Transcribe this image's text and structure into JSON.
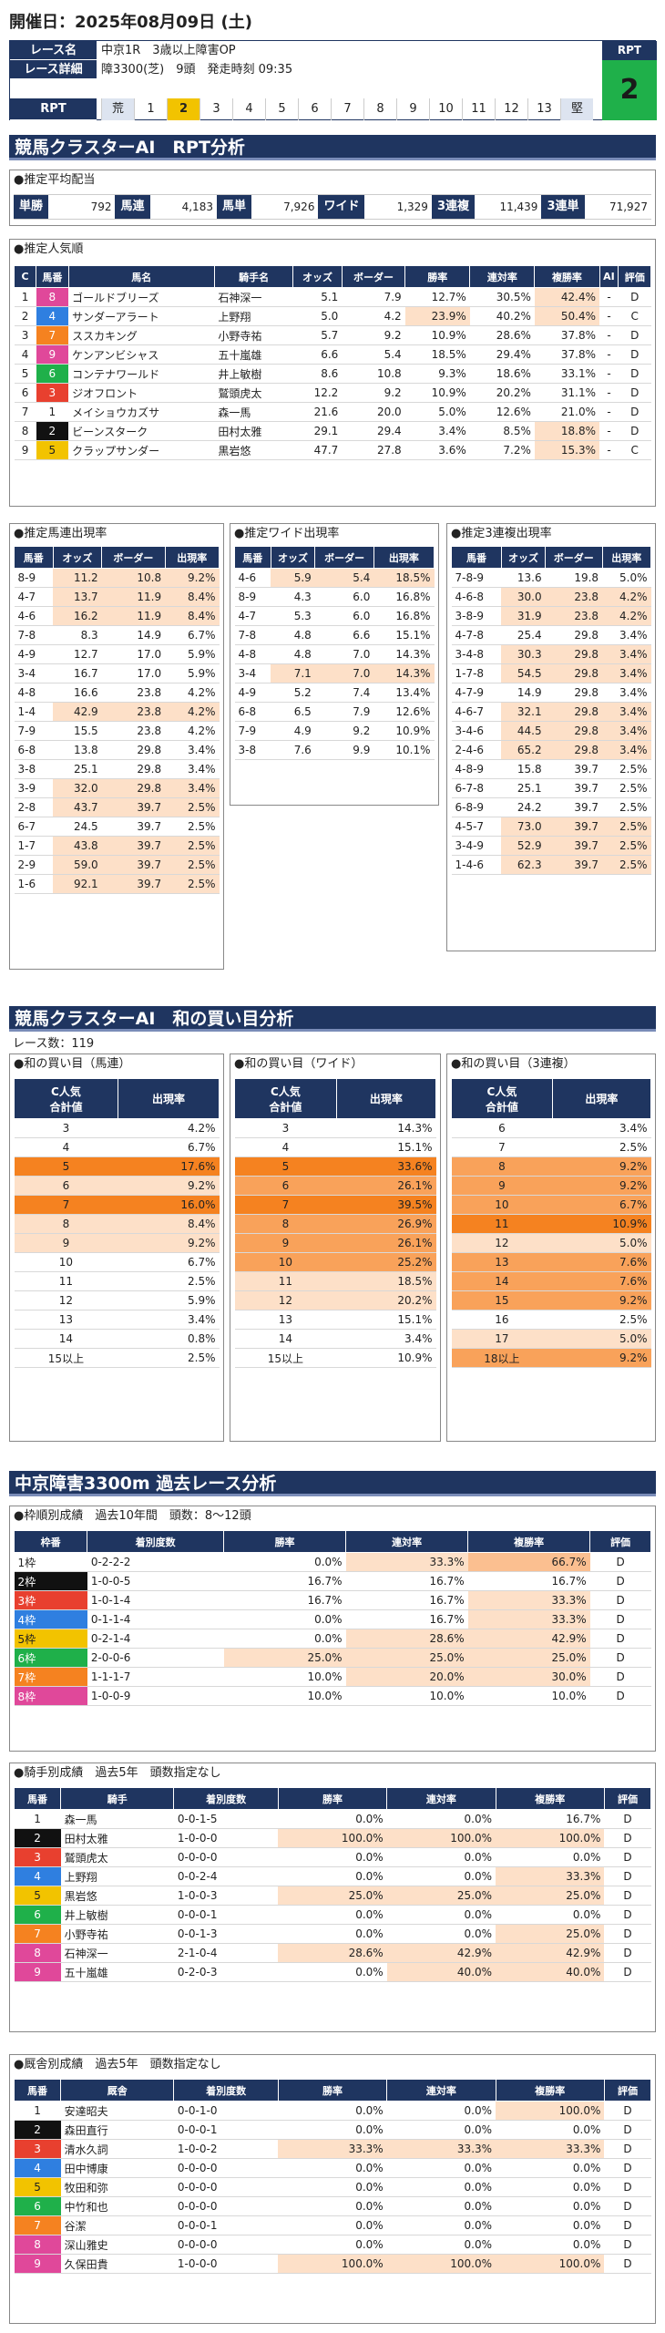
{
  "header": {
    "title": "開催日：2025年08月09日 (土)"
  },
  "race": {
    "name_label": "レース名",
    "name": "中京1R　3歳以上障害OP",
    "detail_label": "レース詳細",
    "detail": "障3300(芝)　9頭　発走時刻 09:35",
    "rpt_label": "RPT",
    "rpt_value": "2",
    "scale_label": "RPT",
    "scale_left": "荒",
    "scale_right": "堅",
    "scale": [
      "1",
      "2",
      "3",
      "4",
      "5",
      "6",
      "7",
      "8",
      "9",
      "10",
      "11",
      "12",
      "13"
    ]
  },
  "s1": {
    "title": "競馬クラスターAI　RPT分析"
  },
  "payout": {
    "title": "●推定平均配当",
    "items": [
      [
        "単勝",
        "792"
      ],
      [
        "馬連",
        "4,183"
      ],
      [
        "馬単",
        "7,926"
      ],
      [
        "ワイド",
        "1,329"
      ],
      [
        "3連複",
        "11,439"
      ],
      [
        "3連単",
        "71,927"
      ]
    ]
  },
  "popular": {
    "title": "●推定人気順",
    "headers": [
      "C",
      "馬番",
      "馬名",
      "騎手名",
      "オッズ",
      "ボーダー",
      "勝率",
      "連対率",
      "複勝率",
      "AI",
      "評価"
    ],
    "rows": [
      [
        "1",
        "8",
        "ゴールドブリーズ",
        "石神深一",
        "5.1",
        "7.9",
        "12.7%",
        "30.5%",
        "42.4%",
        "-",
        "D"
      ],
      [
        "2",
        "4",
        "サンダーアラート",
        "上野翔",
        "5.0",
        "4.2",
        "23.9%",
        "40.2%",
        "50.4%",
        "-",
        "C"
      ],
      [
        "3",
        "7",
        "ススカキング",
        "小野寺祐",
        "5.7",
        "9.2",
        "10.9%",
        "28.6%",
        "37.8%",
        "-",
        "D"
      ],
      [
        "4",
        "9",
        "ケンアンビシャス",
        "五十嵐雄",
        "6.6",
        "5.4",
        "18.5%",
        "29.4%",
        "37.8%",
        "-",
        "D"
      ],
      [
        "5",
        "6",
        "コンテナワールド",
        "井上敏樹",
        "8.6",
        "10.8",
        "9.3%",
        "18.6%",
        "33.1%",
        "-",
        "D"
      ],
      [
        "6",
        "3",
        "ジオフロント",
        "鷲頭虎太",
        "12.2",
        "9.2",
        "10.9%",
        "20.2%",
        "31.1%",
        "-",
        "D"
      ],
      [
        "7",
        "1",
        "メイショウカズサ",
        "森一馬",
        "21.6",
        "20.0",
        "5.0%",
        "12.6%",
        "21.0%",
        "-",
        "D"
      ],
      [
        "8",
        "2",
        "ビーンスターク",
        "田村太雅",
        "29.1",
        "29.4",
        "3.4%",
        "8.5%",
        "18.8%",
        "-",
        "D"
      ],
      [
        "9",
        "5",
        "クラップサンダー",
        "黒岩悠",
        "47.7",
        "27.8",
        "3.6%",
        "7.2%",
        "15.3%",
        "-",
        "C"
      ]
    ]
  },
  "umaren": {
    "title": "●推定馬連出現率",
    "headers": [
      "馬番",
      "オッズ",
      "ボーダー",
      "出現率"
    ],
    "rows": [
      [
        "8-9",
        "11.2",
        "10.8",
        "9.2%"
      ],
      [
        "4-7",
        "13.7",
        "11.9",
        "8.4%"
      ],
      [
        "4-6",
        "16.2",
        "11.9",
        "8.4%"
      ],
      [
        "7-8",
        "8.3",
        "14.9",
        "6.7%"
      ],
      [
        "4-9",
        "12.7",
        "17.0",
        "5.9%"
      ],
      [
        "3-4",
        "16.7",
        "17.0",
        "5.9%"
      ],
      [
        "4-8",
        "16.6",
        "23.8",
        "4.2%"
      ],
      [
        "1-4",
        "42.9",
        "23.8",
        "4.2%"
      ],
      [
        "7-9",
        "15.5",
        "23.8",
        "4.2%"
      ],
      [
        "6-8",
        "13.8",
        "29.8",
        "3.4%"
      ],
      [
        "3-8",
        "25.1",
        "29.8",
        "3.4%"
      ],
      [
        "3-9",
        "32.0",
        "29.8",
        "3.4%"
      ],
      [
        "2-8",
        "43.7",
        "39.7",
        "2.5%"
      ],
      [
        "6-7",
        "24.5",
        "39.7",
        "2.5%"
      ],
      [
        "1-7",
        "43.8",
        "39.7",
        "2.5%"
      ],
      [
        "2-9",
        "59.0",
        "39.7",
        "2.5%"
      ],
      [
        "1-6",
        "92.1",
        "39.7",
        "2.5%"
      ]
    ]
  },
  "wide": {
    "title": "●推定ワイド出現率",
    "headers": [
      "馬番",
      "オッズ",
      "ボーダー",
      "出現率"
    ],
    "rows": [
      [
        "4-6",
        "5.9",
        "5.4",
        "18.5%"
      ],
      [
        "8-9",
        "4.3",
        "6.0",
        "16.8%"
      ],
      [
        "4-7",
        "5.3",
        "6.0",
        "16.8%"
      ],
      [
        "7-8",
        "4.8",
        "6.6",
        "15.1%"
      ],
      [
        "4-8",
        "4.8",
        "7.0",
        "14.3%"
      ],
      [
        "3-4",
        "7.1",
        "7.0",
        "14.3%"
      ],
      [
        "4-9",
        "5.2",
        "7.4",
        "13.4%"
      ],
      [
        "6-8",
        "6.5",
        "7.9",
        "12.6%"
      ],
      [
        "7-9",
        "4.9",
        "9.2",
        "10.9%"
      ],
      [
        "3-8",
        "7.6",
        "9.9",
        "10.1%"
      ]
    ]
  },
  "trio": {
    "title": "●推定3連複出現率",
    "headers": [
      "馬番",
      "オッズ",
      "ボーダー",
      "出現率"
    ],
    "rows": [
      [
        "7-8-9",
        "13.6",
        "19.8",
        "5.0%"
      ],
      [
        "4-6-8",
        "30.0",
        "23.8",
        "4.2%"
      ],
      [
        "3-8-9",
        "31.9",
        "23.8",
        "4.2%"
      ],
      [
        "4-7-8",
        "25.4",
        "29.8",
        "3.4%"
      ],
      [
        "3-4-8",
        "30.3",
        "29.8",
        "3.4%"
      ],
      [
        "1-7-8",
        "54.5",
        "29.8",
        "3.4%"
      ],
      [
        "4-7-9",
        "14.9",
        "29.8",
        "3.4%"
      ],
      [
        "4-6-7",
        "32.1",
        "29.8",
        "3.4%"
      ],
      [
        "3-4-6",
        "44.5",
        "29.8",
        "3.4%"
      ],
      [
        "2-4-6",
        "65.2",
        "29.8",
        "3.4%"
      ],
      [
        "4-8-9",
        "15.8",
        "39.7",
        "2.5%"
      ],
      [
        "6-7-8",
        "25.1",
        "39.7",
        "2.5%"
      ],
      [
        "6-8-9",
        "24.2",
        "39.7",
        "2.5%"
      ],
      [
        "4-5-7",
        "73.0",
        "39.7",
        "2.5%"
      ],
      [
        "3-4-9",
        "52.9",
        "39.7",
        "2.5%"
      ],
      [
        "1-4-6",
        "62.3",
        "39.7",
        "2.5%"
      ]
    ]
  },
  "s2": {
    "title": "競馬クラスターAI　和の買い目分析",
    "races": "レース数：119"
  },
  "sum_umaren": {
    "title": "●和の買い目（馬連）",
    "h1": "C人気\n合計値",
    "h2": "出現率",
    "rows": [
      [
        "3",
        "4.2%"
      ],
      [
        "4",
        "6.7%"
      ],
      [
        "5",
        "17.6%"
      ],
      [
        "6",
        "9.2%"
      ],
      [
        "7",
        "16.0%"
      ],
      [
        "8",
        "8.4%"
      ],
      [
        "9",
        "9.2%"
      ],
      [
        "10",
        "6.7%"
      ],
      [
        "11",
        "2.5%"
      ],
      [
        "12",
        "5.9%"
      ],
      [
        "13",
        "3.4%"
      ],
      [
        "14",
        "0.8%"
      ],
      [
        "15以上",
        "2.5%"
      ]
    ]
  },
  "sum_wide": {
    "title": "●和の買い目（ワイド）",
    "h1": "C人気\n合計値",
    "h2": "出現率",
    "rows": [
      [
        "3",
        "14.3%"
      ],
      [
        "4",
        "15.1%"
      ],
      [
        "5",
        "33.6%"
      ],
      [
        "6",
        "26.1%"
      ],
      [
        "7",
        "39.5%"
      ],
      [
        "8",
        "26.9%"
      ],
      [
        "9",
        "26.1%"
      ],
      [
        "10",
        "25.2%"
      ],
      [
        "11",
        "18.5%"
      ],
      [
        "12",
        "20.2%"
      ],
      [
        "13",
        "15.1%"
      ],
      [
        "14",
        "3.4%"
      ],
      [
        "15以上",
        "10.9%"
      ]
    ]
  },
  "sum_trio": {
    "title": "●和の買い目（3連複）",
    "h1": "C人気\n合計値",
    "h2": "出現率",
    "rows": [
      [
        "6",
        "3.4%"
      ],
      [
        "7",
        "2.5%"
      ],
      [
        "8",
        "9.2%"
      ],
      [
        "9",
        "9.2%"
      ],
      [
        "10",
        "6.7%"
      ],
      [
        "11",
        "10.9%"
      ],
      [
        "12",
        "5.0%"
      ],
      [
        "13",
        "7.6%"
      ],
      [
        "14",
        "7.6%"
      ],
      [
        "15",
        "9.2%"
      ],
      [
        "16",
        "2.5%"
      ],
      [
        "17",
        "5.0%"
      ],
      [
        "18以上",
        "9.2%"
      ]
    ]
  },
  "s3": {
    "title": "中京障害3300m 過去レース分析"
  },
  "waku": {
    "title": "●枠順別成績　過去10年間　頭数：8～12頭",
    "headers": [
      "枠番",
      "着別度数",
      "勝率",
      "連対率",
      "複勝率",
      "評価"
    ],
    "rows": [
      [
        "1枠",
        "0-2-2-2",
        "0.0%",
        "33.3%",
        "66.7%",
        "D"
      ],
      [
        "2枠",
        "1-0-0-5",
        "16.7%",
        "16.7%",
        "16.7%",
        "D"
      ],
      [
        "3枠",
        "1-0-1-4",
        "16.7%",
        "16.7%",
        "33.3%",
        "D"
      ],
      [
        "4枠",
        "0-1-1-4",
        "0.0%",
        "16.7%",
        "33.3%",
        "D"
      ],
      [
        "5枠",
        "0-2-1-4",
        "0.0%",
        "28.6%",
        "42.9%",
        "D"
      ],
      [
        "6枠",
        "2-0-0-6",
        "25.0%",
        "25.0%",
        "25.0%",
        "D"
      ],
      [
        "7枠",
        "1-1-1-7",
        "10.0%",
        "20.0%",
        "30.0%",
        "D"
      ],
      [
        "8枠",
        "1-0-0-9",
        "10.0%",
        "10.0%",
        "10.0%",
        "D"
      ]
    ]
  },
  "jockey": {
    "title": "●騎手別成績　過去5年　頭数指定なし",
    "headers": [
      "馬番",
      "騎手",
      "着別度数",
      "勝率",
      "連対率",
      "複勝率",
      "評価"
    ],
    "rows": [
      [
        "1",
        "森一馬",
        "0-0-1-5",
        "0.0%",
        "0.0%",
        "16.7%",
        "D"
      ],
      [
        "2",
        "田村太雅",
        "1-0-0-0",
        "100.0%",
        "100.0%",
        "100.0%",
        "D"
      ],
      [
        "3",
        "鷲頭虎太",
        "0-0-0-0",
        "0.0%",
        "0.0%",
        "0.0%",
        "D"
      ],
      [
        "4",
        "上野翔",
        "0-0-2-4",
        "0.0%",
        "0.0%",
        "33.3%",
        "D"
      ],
      [
        "5",
        "黒岩悠",
        "1-0-0-3",
        "25.0%",
        "25.0%",
        "25.0%",
        "D"
      ],
      [
        "6",
        "井上敏樹",
        "0-0-0-1",
        "0.0%",
        "0.0%",
        "0.0%",
        "D"
      ],
      [
        "7",
        "小野寺祐",
        "0-0-1-3",
        "0.0%",
        "0.0%",
        "25.0%",
        "D"
      ],
      [
        "8",
        "石神深一",
        "2-1-0-4",
        "28.6%",
        "42.9%",
        "42.9%",
        "D"
      ],
      [
        "9",
        "五十嵐雄",
        "0-2-0-3",
        "0.0%",
        "40.0%",
        "40.0%",
        "D"
      ]
    ]
  },
  "trainer": {
    "title": "●厩舎別成績　過去5年　頭数指定なし",
    "headers": [
      "馬番",
      "厩舎",
      "着別度数",
      "勝率",
      "連対率",
      "複勝率",
      "評価"
    ],
    "rows": [
      [
        "1",
        "安達昭夫",
        "0-0-1-0",
        "0.0%",
        "0.0%",
        "100.0%",
        "D"
      ],
      [
        "2",
        "森田直行",
        "0-0-0-1",
        "0.0%",
        "0.0%",
        "0.0%",
        "D"
      ],
      [
        "3",
        "清水久詞",
        "1-0-0-2",
        "33.3%",
        "33.3%",
        "33.3%",
        "D"
      ],
      [
        "4",
        "田中博康",
        "0-0-0-0",
        "0.0%",
        "0.0%",
        "0.0%",
        "D"
      ],
      [
        "5",
        "牧田和弥",
        "0-0-0-0",
        "0.0%",
        "0.0%",
        "0.0%",
        "D"
      ],
      [
        "6",
        "中竹和也",
        "0-0-0-0",
        "0.0%",
        "0.0%",
        "0.0%",
        "D"
      ],
      [
        "7",
        "谷潔",
        "0-0-0-1",
        "0.0%",
        "0.0%",
        "0.0%",
        "D"
      ],
      [
        "8",
        "深山雅史",
        "0-0-0-0",
        "0.0%",
        "0.0%",
        "0.0%",
        "D"
      ],
      [
        "9",
        "久保田貴",
        "1-0-0-0",
        "100.0%",
        "100.0%",
        "100.0%",
        "D"
      ]
    ]
  }
}
